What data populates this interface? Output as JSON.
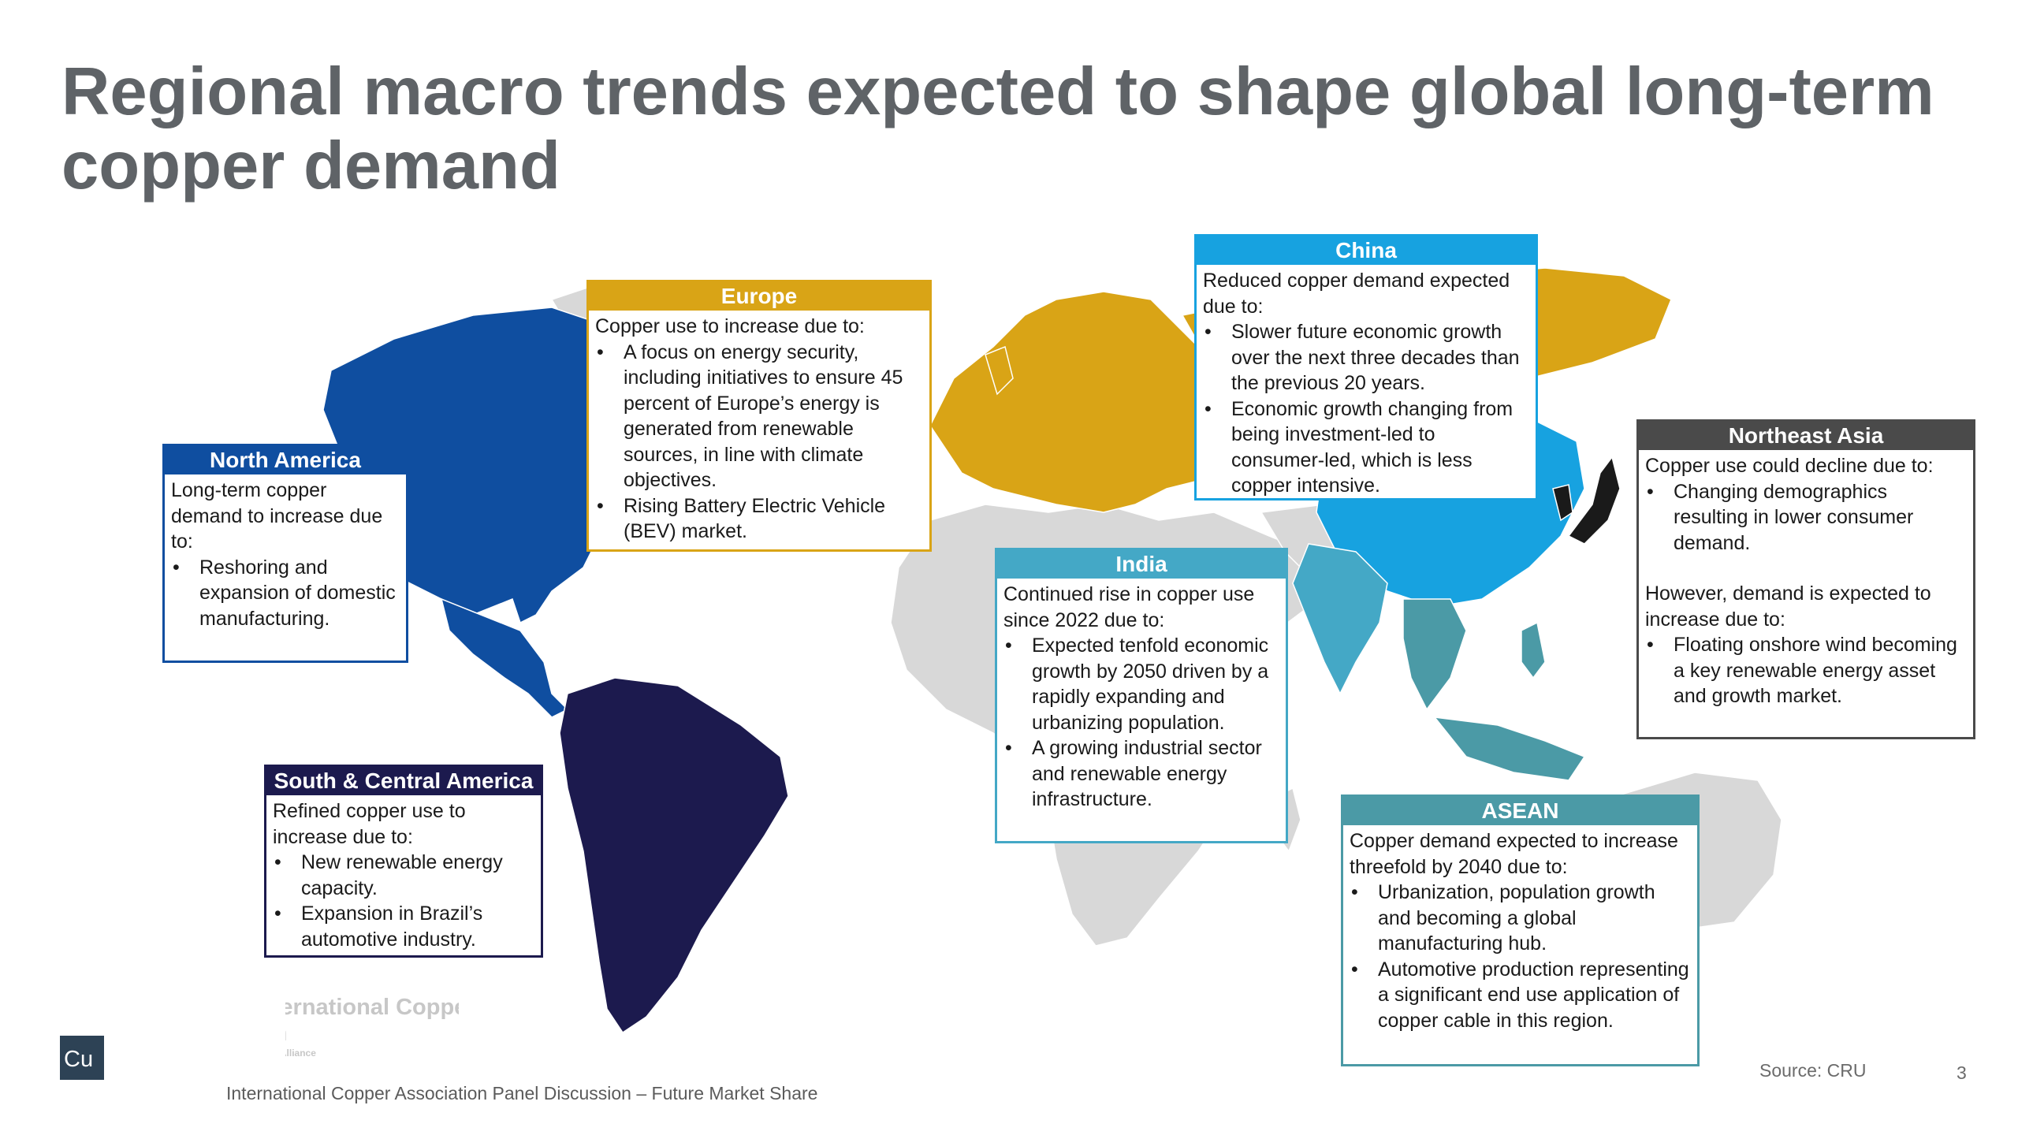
{
  "slide": {
    "title": "Regional macro trends expected to shape global long-term copper demand",
    "footer": "International Copper Association Panel Discussion – Future Market Share",
    "source": "Source: CRU",
    "page_number": "3",
    "logo_text": "Cu",
    "watermark_line1": "International Copper",
    "watermark_line2": "Association",
    "watermark_line3": "Copper Alliance"
  },
  "colors": {
    "north_america": "#0f4ea0",
    "south_central_america": "#1c1a4e",
    "europe": "#d9a416",
    "china": "#17a2e0",
    "india": "#44a8c6",
    "asean": "#4b9aa6",
    "northeast_asia": "#1a1a1a",
    "northeast_asia_header": "#4a4a4a",
    "rest_of_world": "#d8d8d8",
    "title": "#5f6367"
  },
  "regions": [
    {
      "id": "north_america",
      "name": "North America",
      "intro": "Long-term copper demand to increase due to:",
      "bullets": [
        "Reshoring and expansion of domestic manufacturing."
      ]
    },
    {
      "id": "south_central_america",
      "name": "South & Central America",
      "intro": "Refined copper use to increase due to:",
      "bullets": [
        "New renewable energy capacity.",
        "Expansion in Brazil’s automotive industry."
      ]
    },
    {
      "id": "europe",
      "name": "Europe",
      "intro": "Copper use to increase due to:",
      "bullets": [
        "A focus on energy security, including initiatives to ensure 45 percent of Europe’s energy is generated from renewable sources, in line with climate objectives.",
        "Rising Battery Electric Vehicle (BEV) market."
      ]
    },
    {
      "id": "china",
      "name": "China",
      "intro": "Reduced copper demand expected due to:",
      "bullets": [
        "Slower future economic growth over the next three decades than the previous 20 years.",
        "Economic growth changing from being investment-led to consumer-led, which is less copper intensive."
      ]
    },
    {
      "id": "india",
      "name": "India",
      "intro": "Continued rise in copper use since 2022 due to:",
      "bullets": [
        "Expected tenfold economic growth by 2050 driven by a rapidly expanding and urbanizing population.",
        "A growing industrial sector and renewable energy infrastructure."
      ]
    },
    {
      "id": "northeast_asia",
      "name": "Northeast Asia",
      "intro": "Copper use could decline due to:",
      "bullets": [
        "Changing demographics resulting in lower consumer demand."
      ],
      "intro2": "However, demand is expected to increase due to:",
      "bullets2": [
        "Floating onshore wind becoming a key renewable energy asset and growth market."
      ]
    },
    {
      "id": "asean",
      "name": "ASEAN",
      "intro": "Copper demand expected to increase threefold by 2040 due to:",
      "bullets": [
        "Urbanization, population growth and becoming a global manufacturing hub.",
        "Automotive production representing a significant end use application of copper cable in this region."
      ]
    }
  ]
}
